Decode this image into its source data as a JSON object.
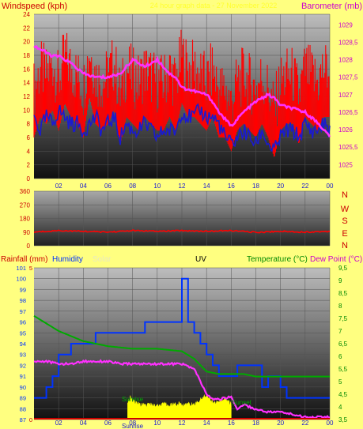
{
  "colors": {
    "background": "#ffff80",
    "wind": "#ff0000",
    "gust": "#ff0000",
    "avgwind": "#1a1ad0",
    "barometer": "#ff30ff",
    "direction": "#ff0000",
    "rain": "#cc0000",
    "humidity": "#0033ff",
    "solar": "#ffff00",
    "uv": "#000000",
    "temperature": "#00aa00",
    "dewpoint": "#ff30ff",
    "pressure_axis": "#cc00cc"
  },
  "header": {
    "left_title": "Windspeed (kph)",
    "center_title": "24 hour graph data - 27 November 2022",
    "right_title": "Barometer (mb)"
  },
  "direction_labels": [
    "N",
    "W",
    "S",
    "E",
    "N"
  ],
  "bottom_legend": {
    "rainfall": "Rainfall (mm)",
    "humidity": "Humidity",
    "solar": "Solar",
    "uv": "UV",
    "temperature": "Temperature (°C)",
    "dewpoint": "Dew Point (°C)"
  },
  "annotations": {
    "sunrise": "Sunrise",
    "sunset": "Sunset",
    "sunrise_axis": "Sunrise"
  },
  "chart_data": [
    {
      "type": "line",
      "title": "",
      "x_ticks": [
        "02",
        "04",
        "06",
        "08",
        "10",
        "12",
        "14",
        "16",
        "18",
        "20",
        "22",
        "00"
      ],
      "x_range_hours": [
        0,
        24
      ],
      "left_axis": {
        "label": "Windspeed (kph)",
        "range": [
          0,
          24
        ],
        "ticks": [
          0,
          2,
          4,
          6,
          8,
          10,
          12,
          14,
          16,
          18,
          20,
          22,
          24
        ]
      },
      "right_axis": {
        "label": "Barometer (mb)",
        "range": [
          1024.6,
          1029.3
        ],
        "ticks": [
          "1025",
          "1025,5",
          "1026",
          "1026,5",
          "1027",
          "1027,5",
          "1028",
          "1028,5",
          "1029"
        ]
      },
      "series": [
        {
          "name": "Windspeed (kph)",
          "axis": "left",
          "style": "gust-bars",
          "x": [
            0,
            0.5,
            1,
            1.5,
            2,
            2.5,
            3,
            3.5,
            4,
            4.5,
            5,
            5.5,
            6,
            6.5,
            7,
            7.5,
            8,
            8.5,
            9,
            9.5,
            10,
            10.5,
            11,
            11.5,
            12,
            12.5,
            13,
            13.5,
            14,
            14.5,
            15,
            15.5,
            16,
            16.5,
            17,
            17.5,
            18,
            18.5,
            19,
            19.5,
            20,
            20.5,
            21,
            21.5,
            22,
            22.5,
            23,
            23.5,
            24
          ],
          "values": [
            13,
            16,
            15,
            17,
            14,
            18,
            16,
            15,
            13,
            19,
            15,
            14,
            15,
            17,
            12,
            16,
            15,
            14,
            16,
            15,
            14,
            14,
            16,
            14,
            18,
            16,
            16,
            15,
            14,
            16,
            13,
            13,
            11,
            14,
            15,
            14,
            13,
            15,
            13,
            10,
            14,
            15,
            15,
            12,
            16,
            15,
            14,
            16,
            16
          ]
        },
        {
          "name": "Average windspeed (kph)",
          "axis": "left",
          "x": [
            0,
            0.5,
            1,
            1.5,
            2,
            2.5,
            3,
            3.5,
            4,
            4.5,
            5,
            5.5,
            6,
            6.5,
            7,
            7.5,
            8,
            8.5,
            9,
            9.5,
            10,
            10.5,
            11,
            11.5,
            12,
            12.5,
            13,
            13.5,
            14,
            14.5,
            15,
            15.5,
            16,
            16.5,
            17,
            17.5,
            18,
            18.5,
            19,
            19.5,
            20,
            20.5,
            21,
            21.5,
            22,
            22.5,
            23,
            23.5,
            24
          ],
          "values": [
            9,
            7,
            9,
            8,
            10,
            9,
            8,
            8,
            7,
            8,
            9,
            7,
            8,
            9,
            6,
            8,
            7,
            7,
            8,
            7,
            6,
            7,
            7,
            7,
            10,
            9,
            9,
            10,
            9,
            9,
            8,
            6,
            5,
            6,
            7,
            6,
            5,
            7,
            5,
            4,
            6,
            7,
            7,
            6,
            8,
            7,
            7,
            8,
            7
          ]
        },
        {
          "name": "Barometer (mb)",
          "axis": "right",
          "x": [
            0,
            1,
            1.5,
            2,
            3,
            4,
            5,
            6,
            7,
            8,
            9,
            10,
            10.5,
            11,
            11.5,
            12,
            13,
            14,
            14.5,
            15,
            15.5,
            16,
            16.5,
            17,
            18,
            19,
            19.5,
            20,
            21,
            22,
            23,
            23.5,
            24
          ],
          "values": [
            1028.4,
            1028.2,
            1028.1,
            1028.1,
            1027.9,
            1027.6,
            1027.5,
            1027.5,
            1027.6,
            1028.0,
            1027.8,
            1028.0,
            1027.8,
            1027.6,
            1027.5,
            1027.2,
            1027.1,
            1027.0,
            1026.8,
            1026.5,
            1026.3,
            1026.1,
            1026.3,
            1026.5,
            1026.8,
            1027.0,
            1026.9,
            1026.7,
            1026.6,
            1026.5,
            1026.2,
            1026.0,
            1025.8
          ]
        }
      ]
    },
    {
      "type": "line",
      "title": "",
      "left_axis": {
        "label": "",
        "range": [
          0,
          360
        ],
        "ticks": [
          0,
          90,
          180,
          270,
          360
        ]
      },
      "series": [
        {
          "name": "Wind direction (deg)",
          "x": [
            0,
            2,
            4,
            6,
            8,
            10,
            12,
            14,
            16,
            18,
            20,
            22,
            24
          ],
          "values": [
            90,
            100,
            95,
            90,
            100,
            95,
            100,
            95,
            100,
            88,
            95,
            90,
            95
          ]
        }
      ]
    },
    {
      "type": "line",
      "title": "",
      "left_axis": {
        "label": "Humidity",
        "range": [
          87,
          101
        ],
        "ticks": [
          87,
          88,
          89,
          90,
          91,
          92,
          93,
          94,
          95,
          96,
          97,
          98,
          99,
          100,
          101
        ]
      },
      "left_outer_axis": {
        "label": "Rainfall (mm)",
        "range": [
          0,
          5
        ],
        "ticks": [
          0,
          5
        ]
      },
      "right_axis": {
        "label": "Temperature (°C)",
        "range": [
          3.5,
          9.5
        ],
        "ticks": [
          "3,5",
          "4",
          "4,5",
          "5",
          "5,5",
          "6",
          "6,5",
          "7",
          "7,5",
          "8",
          "8,5",
          "9",
          "9,5"
        ]
      },
      "series": [
        {
          "name": "Humidity",
          "axis": "left",
          "step": true,
          "x": [
            0,
            0.5,
            1,
            1.5,
            2,
            3,
            4,
            5,
            6,
            7,
            8,
            9,
            10,
            11,
            11.5,
            12,
            12.5,
            13,
            13.5,
            14,
            14.5,
            15,
            16,
            16.5,
            17,
            18,
            18.5,
            19,
            20,
            20.5,
            21,
            22,
            23,
            24
          ],
          "values": [
            89,
            89,
            90,
            91,
            93,
            94,
            94,
            95,
            95,
            95,
            95,
            96,
            96,
            96,
            96,
            100,
            96,
            95,
            94,
            93,
            92,
            91,
            91,
            92,
            92,
            92,
            90,
            91,
            90,
            89,
            89,
            89,
            89,
            89
          ]
        },
        {
          "name": "Temperature (°C)",
          "axis": "right",
          "x": [
            0,
            1,
            2,
            3,
            4,
            5,
            6,
            8,
            10,
            12,
            13,
            14,
            15,
            16,
            17,
            18,
            19,
            20,
            21,
            22,
            24
          ],
          "values": [
            7.6,
            7.3,
            7.0,
            6.8,
            6.6,
            6.5,
            6.4,
            6.3,
            6.3,
            6.2,
            5.9,
            5.4,
            5.3,
            5.3,
            5.3,
            5.2,
            5.2,
            5.2,
            5.2,
            5.2,
            5.2
          ]
        },
        {
          "name": "Dew Point (°C)",
          "axis": "right",
          "x": [
            0,
            1,
            2,
            3,
            4,
            5,
            6,
            7,
            8,
            10,
            12,
            13,
            13.5,
            14,
            14.5,
            15,
            16,
            16.5,
            17,
            18,
            19,
            20,
            21,
            22,
            23,
            24
          ],
          "values": [
            5.8,
            5.8,
            5.7,
            5.7,
            5.8,
            5.8,
            5.8,
            5.7,
            5.7,
            5.7,
            5.7,
            5.5,
            5.0,
            4.5,
            4.3,
            4.3,
            4.4,
            3.9,
            4.1,
            3.9,
            3.8,
            3.8,
            3.7,
            3.6,
            3.6,
            3.6
          ]
        },
        {
          "name": "Solar",
          "axis": "left",
          "style": "area",
          "x": [
            7.6,
            7.8,
            8,
            8.3,
            8.6,
            9,
            9.5,
            10,
            10.5,
            11,
            11.5,
            12,
            12.5,
            13,
            13.5,
            14,
            14.5,
            15,
            15.5,
            16
          ],
          "values": [
            88.4,
            89.0,
            88.6,
            88.6,
            88.3,
            88.3,
            88.3,
            88.3,
            88.4,
            88.3,
            88.4,
            88.4,
            88.4,
            88.3,
            88.8,
            89.3,
            88.6,
            88.5,
            89.0,
            88.4
          ]
        },
        {
          "name": "Rainfall (mm)",
          "axis": "left_outer",
          "x": [
            0,
            24
          ],
          "values": [
            0,
            0
          ]
        }
      ]
    }
  ]
}
